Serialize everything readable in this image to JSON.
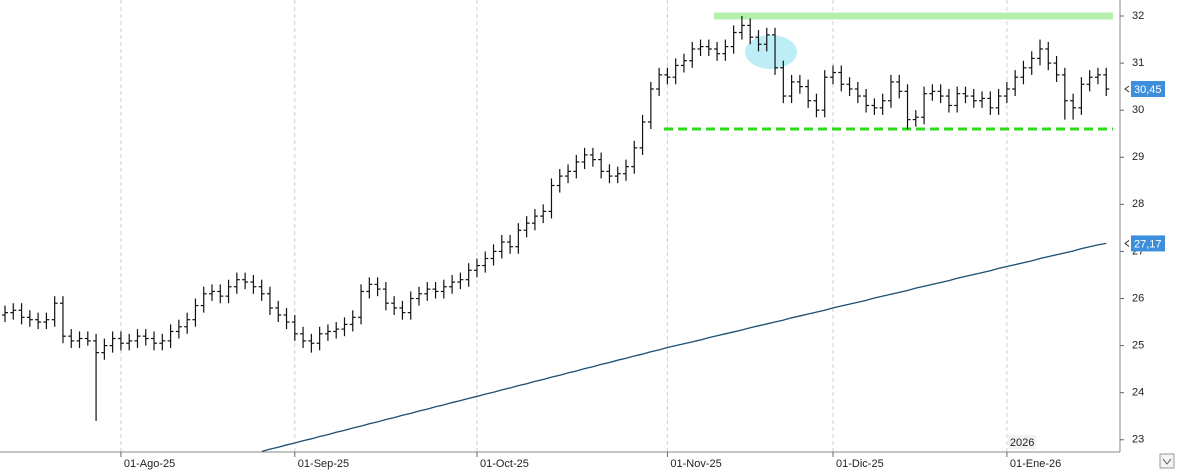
{
  "chart_data": {
    "type": "ohlc",
    "categories": [
      null,
      null,
      null,
      null,
      null,
      null,
      null,
      null,
      null,
      null,
      null,
      null,
      null,
      null,
      "01-Ago-25",
      null,
      null,
      null,
      null,
      null,
      null,
      null,
      null,
      null,
      null,
      null,
      null,
      null,
      null,
      null,
      null,
      null,
      null,
      null,
      null,
      "01-Sep-25",
      null,
      null,
      null,
      null,
      null,
      null,
      null,
      null,
      null,
      null,
      null,
      null,
      null,
      null,
      null,
      null,
      null,
      null,
      null,
      null,
      null,
      "01-Oct-25",
      null,
      null,
      null,
      null,
      null,
      null,
      null,
      null,
      null,
      null,
      null,
      null,
      null,
      null,
      null,
      null,
      null,
      null,
      null,
      null,
      null,
      null,
      "01-Nov-25",
      null,
      null,
      null,
      null,
      null,
      null,
      null,
      null,
      null,
      null,
      null,
      null,
      null,
      null,
      null,
      null,
      null,
      null,
      null,
      "01-Dic-25",
      null,
      null,
      null,
      null,
      null,
      null,
      null,
      null,
      null,
      null,
      null,
      null,
      null,
      null,
      null,
      null,
      null,
      null,
      null,
      null,
      "01-Ene-26",
      null,
      null,
      null,
      null,
      null,
      null,
      null,
      null,
      null,
      null,
      null,
      null
    ],
    "open": [
      25.65,
      25.7,
      25.75,
      25.6,
      25.55,
      25.5,
      25.55,
      25.9,
      25.2,
      25.1,
      25.15,
      25.1,
      24.85,
      25.0,
      25.15,
      25.05,
      25.1,
      25.2,
      25.15,
      25.05,
      25.1,
      25.3,
      25.4,
      25.55,
      25.85,
      26.1,
      26.15,
      26.05,
      26.25,
      26.4,
      26.35,
      26.25,
      26.1,
      25.8,
      25.65,
      25.5,
      25.25,
      25.1,
      25.05,
      25.25,
      25.3,
      25.35,
      25.45,
      25.6,
      26.15,
      26.3,
      26.2,
      25.9,
      25.8,
      25.7,
      26.0,
      26.1,
      26.2,
      26.15,
      26.25,
      26.35,
      26.4,
      26.6,
      26.7,
      26.85,
      27.0,
      27.2,
      27.1,
      27.45,
      27.6,
      27.75,
      27.85,
      28.4,
      28.6,
      28.7,
      28.9,
      29.05,
      28.95,
      28.7,
      28.6,
      28.65,
      28.8,
      29.2,
      29.75,
      30.45,
      30.75,
      30.7,
      30.95,
      31.05,
      31.3,
      31.35,
      31.3,
      31.2,
      31.35,
      31.65,
      31.8,
      31.55,
      31.4,
      31.6,
      30.9,
      30.3,
      30.6,
      30.5,
      30.2,
      30.0,
      30.7,
      30.8,
      30.55,
      30.45,
      30.3,
      30.1,
      30.05,
      30.2,
      30.6,
      30.4,
      29.8,
      29.85,
      30.35,
      30.4,
      30.3,
      30.1,
      30.35,
      30.3,
      30.2,
      30.25,
      30.05,
      30.3,
      30.45,
      30.7,
      30.9,
      31.1,
      31.3,
      31.0,
      30.75,
      30.2,
      30.05,
      30.55,
      30.7,
      30.75
    ],
    "high": [
      25.85,
      25.9,
      25.9,
      25.75,
      25.7,
      25.7,
      26.05,
      26.05,
      25.35,
      25.3,
      25.3,
      25.25,
      25.15,
      25.3,
      25.3,
      25.25,
      25.35,
      25.35,
      25.3,
      25.25,
      25.45,
      25.55,
      25.7,
      26.0,
      26.25,
      26.3,
      26.3,
      26.4,
      26.55,
      26.55,
      26.5,
      26.4,
      26.25,
      25.95,
      25.8,
      25.65,
      25.4,
      25.25,
      25.4,
      25.45,
      25.5,
      25.6,
      25.75,
      26.3,
      26.45,
      26.45,
      26.35,
      26.05,
      25.95,
      26.15,
      26.25,
      26.35,
      26.35,
      26.4,
      26.5,
      26.55,
      26.75,
      26.85,
      27.0,
      27.15,
      27.35,
      27.35,
      27.6,
      27.75,
      27.9,
      28.0,
      28.55,
      28.75,
      28.85,
      29.05,
      29.2,
      29.2,
      29.1,
      28.85,
      28.8,
      28.95,
      29.35,
      29.9,
      30.6,
      30.9,
      30.9,
      31.1,
      31.2,
      31.45,
      31.5,
      31.5,
      31.45,
      31.5,
      31.8,
      32.0,
      31.95,
      31.7,
      31.75,
      31.75,
      31.05,
      30.75,
      30.75,
      30.65,
      30.35,
      30.85,
      30.95,
      30.95,
      30.7,
      30.6,
      30.45,
      30.25,
      30.35,
      30.75,
      30.75,
      30.55,
      30.0,
      30.5,
      30.55,
      30.55,
      30.45,
      30.5,
      30.5,
      30.45,
      30.4,
      30.4,
      30.45,
      30.6,
      30.85,
      31.05,
      31.25,
      31.5,
      31.45,
      31.15,
      30.9,
      30.35,
      30.7,
      30.85,
      30.9,
      30.9
    ],
    "low": [
      25.5,
      25.55,
      25.45,
      25.4,
      25.35,
      25.35,
      25.4,
      25.05,
      24.95,
      24.95,
      25.0,
      23.4,
      24.7,
      24.85,
      24.9,
      24.9,
      24.95,
      25.0,
      24.9,
      24.9,
      24.95,
      25.15,
      25.25,
      25.4,
      25.7,
      25.95,
      25.9,
      25.9,
      26.1,
      26.2,
      26.1,
      25.95,
      25.65,
      25.5,
      25.35,
      25.1,
      24.95,
      24.85,
      24.9,
      25.1,
      25.15,
      25.2,
      25.3,
      25.45,
      26.0,
      26.05,
      25.75,
      25.65,
      25.55,
      25.55,
      25.85,
      25.95,
      26.0,
      26.0,
      26.1,
      26.2,
      26.25,
      26.45,
      26.55,
      26.7,
      26.85,
      26.95,
      26.95,
      27.3,
      27.45,
      27.6,
      27.7,
      28.25,
      28.45,
      28.55,
      28.75,
      28.8,
      28.55,
      28.45,
      28.45,
      28.5,
      28.65,
      29.05,
      29.6,
      30.3,
      30.55,
      30.55,
      30.8,
      30.9,
      31.15,
      31.15,
      31.05,
      31.05,
      31.2,
      31.5,
      31.4,
      31.25,
      31.25,
      30.75,
      30.15,
      30.15,
      30.35,
      30.05,
      29.85,
      29.85,
      30.55,
      30.4,
      30.3,
      30.15,
      29.95,
      29.9,
      29.9,
      30.05,
      30.25,
      29.6,
      29.65,
      29.7,
      30.2,
      30.15,
      29.95,
      29.95,
      30.15,
      30.05,
      30.05,
      29.9,
      29.9,
      30.15,
      30.3,
      30.55,
      30.75,
      30.95,
      30.85,
      30.6,
      29.8,
      29.8,
      29.9,
      30.4,
      30.55,
      30.3
    ],
    "close": [
      25.7,
      25.75,
      25.6,
      25.55,
      25.5,
      25.55,
      25.9,
      25.2,
      25.1,
      25.15,
      25.1,
      24.85,
      25.0,
      25.15,
      25.05,
      25.1,
      25.2,
      25.15,
      25.05,
      25.1,
      25.3,
      25.4,
      25.55,
      25.85,
      26.1,
      26.15,
      26.05,
      26.25,
      26.4,
      26.35,
      26.25,
      26.1,
      25.8,
      25.65,
      25.5,
      25.25,
      25.1,
      25.05,
      25.25,
      25.3,
      25.35,
      25.45,
      25.6,
      26.15,
      26.3,
      26.2,
      25.9,
      25.8,
      25.7,
      26.0,
      26.1,
      26.2,
      26.15,
      26.25,
      26.35,
      26.4,
      26.6,
      26.7,
      26.85,
      27.0,
      27.2,
      27.1,
      27.45,
      27.6,
      27.75,
      27.85,
      28.4,
      28.6,
      28.7,
      28.9,
      29.05,
      28.95,
      28.7,
      28.6,
      28.65,
      28.8,
      29.2,
      29.75,
      30.45,
      30.75,
      30.7,
      30.95,
      31.05,
      31.3,
      31.35,
      31.3,
      31.2,
      31.35,
      31.65,
      31.8,
      31.55,
      31.4,
      31.6,
      30.9,
      30.3,
      30.6,
      30.5,
      30.2,
      30.0,
      30.7,
      30.8,
      30.55,
      30.45,
      30.3,
      30.1,
      30.05,
      30.2,
      30.6,
      30.4,
      29.8,
      29.85,
      30.35,
      30.4,
      30.3,
      30.1,
      30.35,
      30.3,
      30.2,
      30.25,
      30.05,
      30.3,
      30.45,
      30.7,
      30.9,
      31.1,
      31.3,
      31.0,
      30.75,
      30.2,
      30.05,
      30.55,
      30.7,
      30.75,
      30.45
    ],
    "bar_color": "#111111",
    "moving_average": {
      "color": "#1b4f72",
      "values": [
        null,
        null,
        null,
        null,
        null,
        null,
        null,
        null,
        null,
        null,
        null,
        null,
        null,
        null,
        null,
        null,
        null,
        null,
        null,
        null,
        null,
        null,
        null,
        null,
        null,
        null,
        null,
        null,
        null,
        null,
        null,
        22.75,
        22.8,
        22.84,
        22.89,
        22.93,
        22.98,
        23.02,
        23.07,
        23.11,
        23.16,
        23.2,
        23.25,
        23.29,
        23.34,
        23.38,
        23.43,
        23.47,
        23.52,
        23.56,
        23.61,
        23.65,
        23.7,
        23.74,
        23.79,
        23.83,
        23.88,
        23.92,
        23.97,
        24.01,
        24.06,
        24.1,
        24.15,
        24.19,
        24.24,
        24.28,
        24.33,
        24.37,
        24.42,
        24.46,
        24.51,
        24.55,
        24.6,
        24.64,
        24.69,
        24.73,
        24.78,
        24.82,
        24.87,
        24.91,
        24.96,
        25.0,
        25.04,
        25.08,
        25.12,
        25.17,
        25.21,
        25.25,
        25.29,
        25.33,
        25.38,
        25.42,
        25.46,
        25.5,
        25.54,
        25.59,
        25.63,
        25.67,
        25.71,
        25.75,
        25.8,
        25.84,
        25.88,
        25.92,
        25.96,
        26.01,
        26.05,
        26.09,
        26.13,
        26.17,
        26.22,
        26.26,
        26.3,
        26.34,
        26.38,
        26.43,
        26.47,
        26.51,
        26.55,
        26.59,
        26.64,
        26.68,
        26.72,
        26.76,
        26.8,
        26.85,
        26.89,
        26.93,
        26.97,
        27.01,
        27.06,
        27.1,
        27.14,
        27.17
      ]
    },
    "price_labels": [
      {
        "value": 30.45,
        "label": "30,45",
        "color": "#3d8fdc"
      },
      {
        "value": 27.17,
        "label": "27,17",
        "color": "#3d8fdc"
      }
    ],
    "levels": [
      {
        "value": 32.0,
        "color": "#b4f0ae",
        "dashed": false
      },
      {
        "value": 29.6,
        "color": "#2edb1c",
        "dashed": true
      }
    ],
    "year_label": "2026",
    "ylim": [
      22.74,
      32.34
    ],
    "yticks": [
      23,
      24,
      25,
      26,
      27,
      28,
      29,
      30,
      31,
      32
    ],
    "grid": true
  }
}
